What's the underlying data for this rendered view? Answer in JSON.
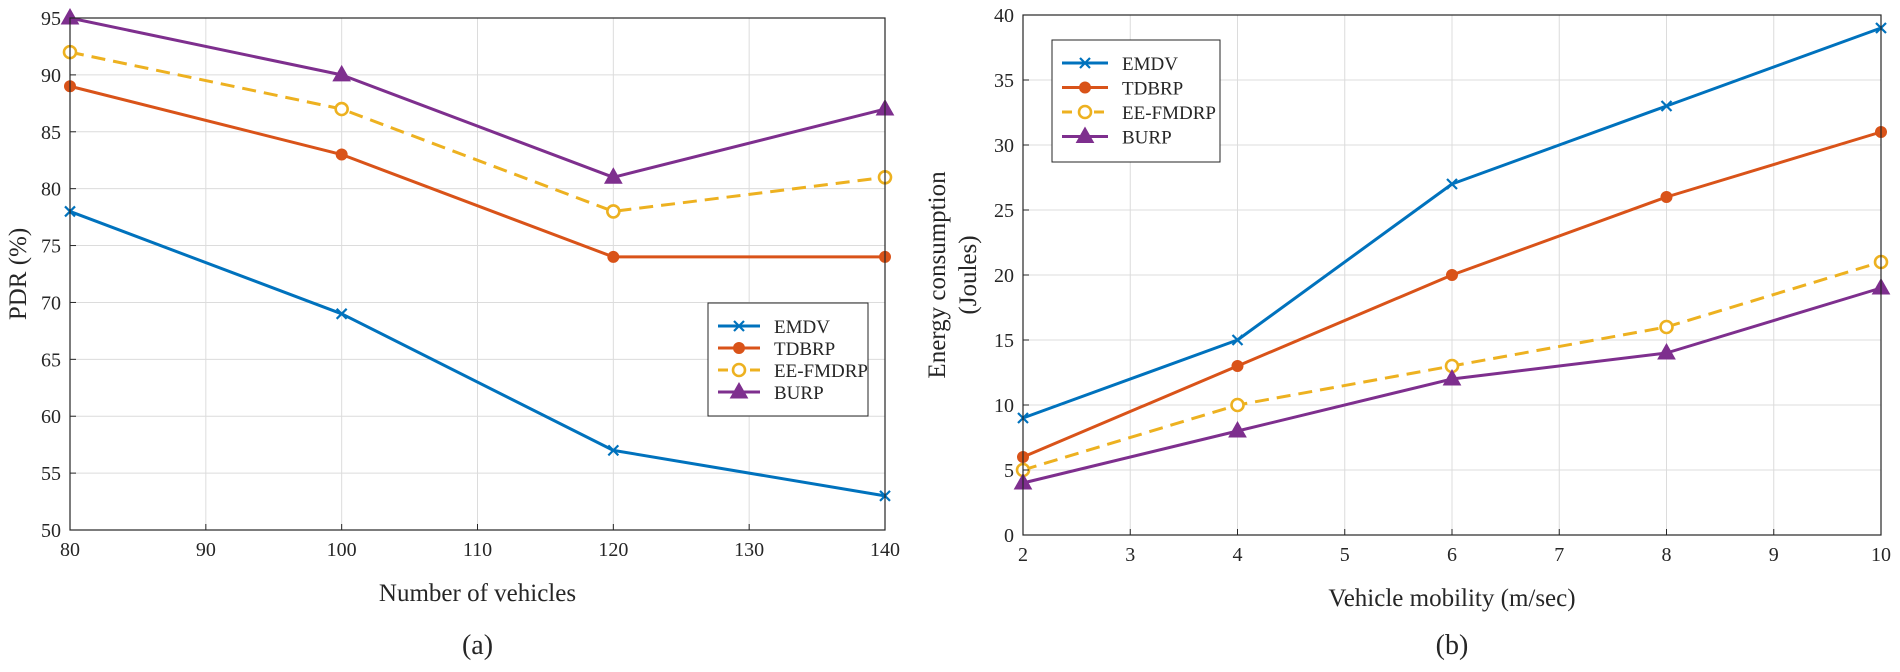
{
  "chart_data": [
    {
      "type": "line",
      "caption": "(a)",
      "xlabel": "Number of vehicles",
      "ylabel": "PDR (%)",
      "x": [
        80,
        100,
        120,
        140
      ],
      "xlim": [
        80,
        140
      ],
      "ylim": [
        50,
        95
      ],
      "xticks": [
        "80",
        "90",
        "100",
        "110",
        "120",
        "130",
        "140"
      ],
      "yticks": [
        "50",
        "55",
        "60",
        "65",
        "70",
        "75",
        "80",
        "85",
        "90",
        "95"
      ],
      "grid": true,
      "legend_position": "center-right",
      "series": [
        {
          "name": "EMDV",
          "values": [
            78,
            69,
            57,
            53
          ],
          "color": "#0072BD",
          "marker": "x",
          "dash": false
        },
        {
          "name": "TDBRP",
          "values": [
            89,
            83,
            74,
            74
          ],
          "color": "#D95319",
          "marker": "dot",
          "dash": false
        },
        {
          "name": "EE-FMDRP",
          "values": [
            92,
            87,
            78,
            81
          ],
          "color": "#EDB120",
          "marker": "circle",
          "dash": true
        },
        {
          "name": "BURP",
          "values": [
            95,
            90,
            81,
            87
          ],
          "color": "#7E2F8E",
          "marker": "triangle",
          "dash": false
        }
      ]
    },
    {
      "type": "line",
      "caption": "(b)",
      "xlabel": "Vehicle mobility (m/sec)",
      "ylabel": "Energy consumption",
      "ylabel2": "(Joules)",
      "x": [
        2,
        4,
        6,
        8,
        10
      ],
      "xlim": [
        2,
        10
      ],
      "ylim": [
        0,
        40
      ],
      "xticks": [
        "2",
        "3",
        "4",
        "5",
        "6",
        "7",
        "8",
        "9",
        "10"
      ],
      "yticks": [
        "0",
        "5",
        "10",
        "15",
        "20",
        "25",
        "30",
        "35",
        "40"
      ],
      "grid": true,
      "legend_position": "top-left",
      "series": [
        {
          "name": "EMDV",
          "values": [
            9,
            15,
            27,
            33,
            39
          ],
          "color": "#0072BD",
          "marker": "x",
          "dash": false
        },
        {
          "name": "TDBRP",
          "values": [
            6,
            13,
            20,
            26,
            31
          ],
          "color": "#D95319",
          "marker": "dot",
          "dash": false
        },
        {
          "name": "EE-FMDRP",
          "values": [
            5,
            10,
            13,
            16,
            21
          ],
          "color": "#EDB120",
          "marker": "circle",
          "dash": true
        },
        {
          "name": "BURP",
          "values": [
            4,
            8,
            12,
            14,
            19
          ],
          "color": "#7E2F8E",
          "marker": "triangle",
          "dash": false
        }
      ]
    }
  ]
}
